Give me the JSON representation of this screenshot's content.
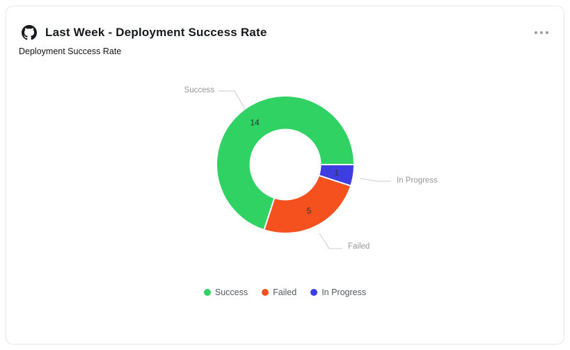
{
  "header": {
    "title": "Last Week - Deployment Success Rate"
  },
  "icons": {
    "header_icon": "github-icon",
    "menu_icon": "ellipsis-icon"
  },
  "panel": {
    "subtitle": "Deployment Success Rate"
  },
  "chart_data": {
    "type": "pie",
    "donut": true,
    "title": "Deployment Success Rate",
    "categories": [
      "Success",
      "Failed",
      "In Progress"
    ],
    "values": [
      14,
      5,
      1
    ],
    "total": 20,
    "series": [
      {
        "name": "Success",
        "value": 14,
        "color": "#2fd263"
      },
      {
        "name": "Failed",
        "value": 5,
        "color": "#f4511e"
      },
      {
        "name": "In Progress",
        "value": 1,
        "color": "#3d3de1"
      }
    ],
    "legend_position": "bottom",
    "slice_border_color": "#ffffff",
    "value_label_color": "#333333",
    "outer_label_color": "#999999",
    "leader_line_color": "#cccccc"
  }
}
